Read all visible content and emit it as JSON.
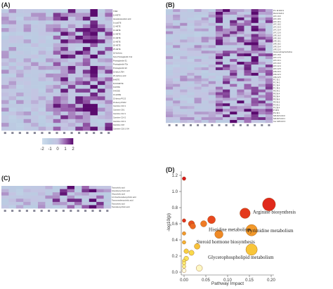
{
  "panels": {
    "A": {
      "letter": "(A)"
    },
    "B": {
      "letter": "(B)"
    },
    "C": {
      "letter": "(C)"
    },
    "D": {
      "letter": "(D)"
    }
  },
  "legend": {
    "ticks": [
      "-2",
      "-1",
      "0",
      "1",
      "2"
    ]
  },
  "chart_data": [
    {
      "type": "heatmap",
      "panel": "A",
      "rows": [
        "TXB2",
        "11-HETE",
        "Hexadecanedioic acid",
        "5-oxoETE",
        "12-HETE",
        "12-HETE",
        "12-HETE",
        "12-HETE",
        "15-HETE",
        "20-HETE",
        "25-HETE",
        "1β-hydroxy",
        "Keto-Prostaglandin F1α",
        "Prostaglandin E1",
        "Prostaglandin F2α",
        "Prostaglandin E3",
        "15-keto-LTB4",
        "20-carboxy acid",
        "8-HETE",
        "8,9-DiHETrE",
        "9-HODE",
        "9-HODE",
        "13-HODE",
        "15-deoxy-PGJ2",
        "15-deoxy-PGD2",
        "Carnitine C10:1",
        "Carnitine C8:1",
        "Carnitine C12:1",
        "Carnitine C14:2",
        "Carnitine C16:1",
        "Carnitine C18",
        "Carnitine C18:1-OH"
      ],
      "columns": 15,
      "scale": [
        -2,
        2
      ]
    },
    {
      "type": "heatmap",
      "panel": "B",
      "rows": [
        "PC 16:0/18:2",
        "PE 16:0/20:4",
        "LPC 16:0",
        "LPC 18:0",
        "LPC 18:1",
        "LPC 18:2",
        "LPC 20:3",
        "LPC 20:4",
        "LPC 22:6",
        "LPE 16:0",
        "LPE 18:0",
        "LPE 18:1",
        "LPE 18:2",
        "LPE 20:4",
        "LPE 22:6",
        "Glycerophosphocholine",
        "LPC 15:0",
        "LPC 17:0",
        "LPC 20:1",
        "LPC 20:2",
        "LPC 22:4",
        "LPC 22:5",
        "LPE 20:3",
        "LPE 22:4",
        "LPE 22:5",
        "PC 32:1",
        "PC 34:2",
        "PC 36:4",
        "PC 38:6",
        "PE 34:2",
        "PE 36:4",
        "PE 38:4",
        "PE 38:6",
        "PE 40:6",
        "PS 36:1",
        "PS 38:4",
        "PI 38:4",
        "PG 34:1",
        "SM d18:1/16:0",
        "SM d18:1/24:1",
        "Cer d18:1/16:0"
      ],
      "columns": 15,
      "scale": [
        -2,
        2
      ]
    },
    {
      "type": "heatmap",
      "panel": "C",
      "rows": [
        "Taurocholic acid",
        "Glycodeoxycholic acid",
        "Glycocholic acid",
        "12-Oxochenodeoxycholic acid",
        "Tauroursodeoxycholic acid",
        "Taurocholic acid",
        "Taurodeoxycholic acid"
      ],
      "columns": 15,
      "scale": [
        -2,
        2
      ]
    },
    {
      "type": "scatter",
      "panel": "D",
      "xlabel": "Pathway Impact",
      "ylabel": "-log10(p)",
      "xlim": [
        0,
        0.2
      ],
      "ylim": [
        0,
        1.2
      ],
      "x_ticks": [
        "0.00",
        "0.05",
        "0.10",
        "0.15",
        "0.20"
      ],
      "y_ticks": [
        "0.0",
        "0.2",
        "0.4",
        "0.6",
        "0.8",
        "1.0",
        "1.2"
      ],
      "grid": false,
      "points": [
        {
          "x": 0.0,
          "y": 1.16,
          "size": 1.4,
          "color": "#d7191c"
        },
        {
          "x": 0.0,
          "y": 0.64,
          "size": 1.4,
          "color": "#e0301e"
        },
        {
          "x": 0.017,
          "y": 0.6,
          "size": 2.4,
          "color": "#e8501f"
        },
        {
          "x": 0.02,
          "y": 0.57,
          "size": 2.2,
          "color": "#ec6a22"
        },
        {
          "x": 0.045,
          "y": 0.6,
          "size": 2.4,
          "color": "#ef7b24"
        },
        {
          "x": 0.063,
          "y": 0.65,
          "size": 3.0,
          "color": "#e8481e",
          "label": "Histidine metabolism"
        },
        {
          "x": 0.14,
          "y": 0.73,
          "size": 4.0,
          "color": "#e43a1c"
        },
        {
          "x": 0.195,
          "y": 0.84,
          "size": 5.0,
          "color": "#e0291b",
          "label": "Arginine biosynthesis"
        },
        {
          "x": 0.08,
          "y": 0.47,
          "size": 3.2,
          "color": "#ef8a26",
          "label": "Steroid hormone biosynthesis"
        },
        {
          "x": 0.155,
          "y": 0.52,
          "size": 4.4,
          "color": "#f2992a",
          "label": "Pyrimidine metabolism"
        },
        {
          "x": 0.0,
          "y": 0.48,
          "size": 1.4,
          "color": "#f29a2a"
        },
        {
          "x": 0.0,
          "y": 0.37,
          "size": 1.4,
          "color": "#f5b232"
        },
        {
          "x": 0.03,
          "y": 0.32,
          "size": 2.2,
          "color": "#f7c23b"
        },
        {
          "x": 0.005,
          "y": 0.26,
          "size": 1.8,
          "color": "#f8cf40"
        },
        {
          "x": 0.017,
          "y": 0.24,
          "size": 2.0,
          "color": "#f9d94a"
        },
        {
          "x": 0.005,
          "y": 0.17,
          "size": 1.8,
          "color": "#fae35a"
        },
        {
          "x": 0.0,
          "y": 0.14,
          "size": 1.4,
          "color": "#fae35a"
        },
        {
          "x": 0.0,
          "y": 0.11,
          "size": 1.4,
          "color": "#fbeb70"
        },
        {
          "x": 0.0,
          "y": 0.07,
          "size": 1.4,
          "color": "#fcf08a"
        },
        {
          "x": 0.155,
          "y": 0.28,
          "size": 4.4,
          "color": "#f8c53a",
          "label": "Glycerophospholipid metabolism"
        },
        {
          "x": 0.035,
          "y": 0.05,
          "size": 2.4,
          "color": "#fdf7c4"
        },
        {
          "x": 0.0,
          "y": 0.02,
          "size": 1.6,
          "color": "#fefbe0"
        }
      ]
    }
  ]
}
